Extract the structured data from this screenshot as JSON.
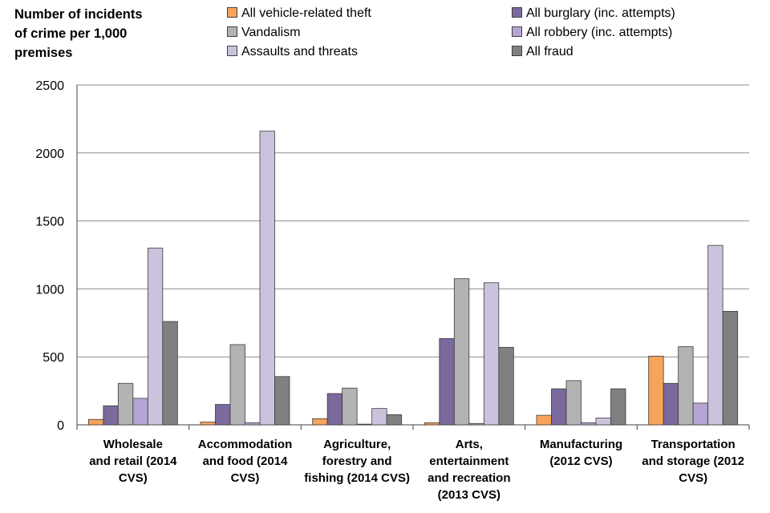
{
  "chart_data": {
    "type": "bar",
    "title": "",
    "ylabel_lines": [
      "Number of incidents",
      "of crime per 1,000",
      "premises"
    ],
    "xlabel": "",
    "ylim": [
      0,
      2500
    ],
    "yticks": [
      0,
      500,
      1000,
      1500,
      2000,
      2500
    ],
    "grid": true,
    "legend_position": "top",
    "categories": [
      [
        "Wholesale",
        "and retail (2014",
        "CVS)"
      ],
      [
        "Accommodation",
        "and food (2014",
        "CVS)"
      ],
      [
        "Agriculture,",
        "forestry and",
        "fishing (2014 CVS)"
      ],
      [
        "Arts,",
        "entertainment",
        "and recreation",
        "(2013 CVS)"
      ],
      [
        "Manufacturing",
        "(2012 CVS)"
      ],
      [
        "Transportation",
        "and storage (2012",
        "CVS)"
      ]
    ],
    "series": [
      {
        "name": "All vehicle-related theft",
        "color": "#f7a35c",
        "values": [
          40,
          20,
          45,
          15,
          70,
          505
        ]
      },
      {
        "name": "All burglary (inc. attempts)",
        "color": "#7a6a9e",
        "values": [
          140,
          150,
          230,
          635,
          265,
          305
        ]
      },
      {
        "name": "Vandalism",
        "color": "#b3b3b3",
        "values": [
          305,
          590,
          270,
          1075,
          325,
          575
        ]
      },
      {
        "name": "All robbery (inc. attempts)",
        "color": "#b6a5d2",
        "values": [
          195,
          15,
          5,
          10,
          15,
          160
        ]
      },
      {
        "name": "Assaults and threats",
        "color": "#cbc3dc",
        "values": [
          1300,
          2160,
          120,
          1045,
          50,
          1320
        ]
      },
      {
        "name": "All fraud",
        "color": "#808080",
        "values": [
          760,
          355,
          75,
          570,
          265,
          835
        ]
      }
    ]
  }
}
